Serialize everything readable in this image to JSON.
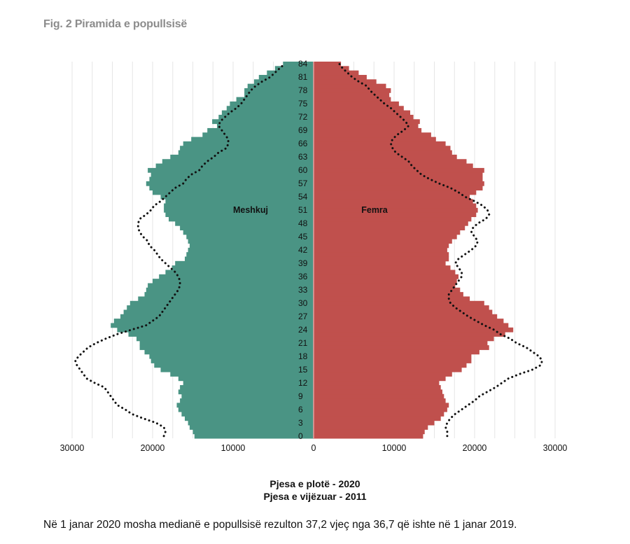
{
  "figure_title": "Fig. 2 Piramida e popullsisë",
  "legend": {
    "solid": "Pjesa e plotë - 2020",
    "dotted": "Pjesa e vijëzuar - 2011"
  },
  "footer_text": "Në 1 janar 2020 mosha medianë e popullsisë rezulton 37,2 vjeç nga 36,7 që ishte në 1 janar 2019.",
  "colors": {
    "male": "#4a9484",
    "female": "#c0504d",
    "grid": "#e6e6e6",
    "axis_line": "#e8a0a0"
  },
  "chart_data": {
    "type": "bar",
    "orientation": "horizontal-population-pyramid",
    "ages": [
      0,
      1,
      2,
      3,
      4,
      5,
      6,
      7,
      8,
      9,
      10,
      11,
      12,
      13,
      14,
      15,
      16,
      17,
      18,
      19,
      20,
      21,
      22,
      23,
      24,
      25,
      26,
      27,
      28,
      29,
      30,
      31,
      32,
      33,
      34,
      35,
      36,
      37,
      38,
      39,
      40,
      41,
      42,
      43,
      44,
      45,
      46,
      47,
      48,
      49,
      50,
      51,
      52,
      53,
      54,
      55,
      56,
      57,
      58,
      59,
      60,
      61,
      62,
      63,
      64,
      65,
      66,
      67,
      68,
      69,
      70,
      71,
      72,
      73,
      74,
      75,
      76,
      77,
      78,
      79,
      80,
      81,
      82,
      83,
      84
    ],
    "y_tick_labels": [
      "0",
      "3",
      "6",
      "9",
      "12",
      "15",
      "18",
      "21",
      "24",
      "27",
      "30",
      "33",
      "36",
      "39",
      "42",
      "45",
      "48",
      "51",
      "54",
      "57",
      "60",
      "63",
      "66",
      "69",
      "72",
      "75",
      "78",
      "81",
      "84"
    ],
    "x_tick_labels": [
      "30000",
      "20000",
      "10000",
      "0",
      "10000",
      "20000",
      "30000"
    ],
    "xlim": [
      -30000,
      30000
    ],
    "series_labels": {
      "male": "Meshkuj",
      "female": "Femra"
    },
    "series": [
      {
        "name": "Meshkuj",
        "style": "solid",
        "values": [
          14800,
          15000,
          15400,
          15600,
          16000,
          16400,
          16800,
          17000,
          16600,
          16400,
          16800,
          16600,
          16200,
          16800,
          17800,
          19000,
          19800,
          20200,
          20400,
          21000,
          21600,
          21600,
          22000,
          23000,
          24400,
          25200,
          24800,
          24000,
          23600,
          23200,
          22800,
          21800,
          21000,
          20800,
          20600,
          20000,
          19200,
          18400,
          17600,
          17200,
          16000,
          15800,
          15600,
          15400,
          15600,
          15800,
          16200,
          16600,
          17200,
          18000,
          18400,
          18600,
          18600,
          18400,
          19000,
          20000,
          20400,
          20800,
          20400,
          20200,
          20600,
          19600,
          18800,
          17800,
          16800,
          16600,
          16200,
          15200,
          13800,
          13200,
          12000,
          12600,
          11800,
          11400,
          10800,
          10400,
          9600,
          8600,
          8600,
          8200,
          7400,
          6800,
          5800,
          4800,
          3800
        ]
      },
      {
        "name": "Femra",
        "style": "solid",
        "values": [
          13600,
          13800,
          14200,
          15000,
          15800,
          16200,
          16600,
          16800,
          16400,
          16200,
          16000,
          15800,
          15600,
          16400,
          17200,
          18400,
          19000,
          19600,
          19600,
          20600,
          21800,
          21600,
          22400,
          23800,
          24800,
          24200,
          23600,
          22800,
          22200,
          21800,
          21200,
          19400,
          18600,
          18200,
          17600,
          17800,
          18000,
          17600,
          17000,
          16400,
          16800,
          16800,
          16600,
          16800,
          17200,
          17800,
          18200,
          18800,
          19200,
          19600,
          20200,
          20400,
          20200,
          19800,
          19400,
          20200,
          21000,
          21200,
          21000,
          21000,
          21200,
          19800,
          19000,
          17800,
          17200,
          17000,
          16400,
          15200,
          14600,
          13400,
          13000,
          13200,
          12400,
          12000,
          11200,
          10600,
          9600,
          9400,
          9600,
          9000,
          7800,
          6600,
          5600,
          4400,
          3400
        ]
      },
      {
        "name": "Meshkuj",
        "style": "dotted",
        "values": [
          18600,
          18400,
          18600,
          19600,
          21200,
          22600,
          23400,
          24400,
          24800,
          25200,
          25600,
          26000,
          27200,
          28200,
          28600,
          29000,
          29400,
          29600,
          29200,
          28600,
          28000,
          27000,
          25800,
          24400,
          22600,
          20800,
          20000,
          19200,
          18800,
          18400,
          18000,
          17600,
          17200,
          16800,
          16600,
          16600,
          16800,
          17200,
          17800,
          18400,
          19000,
          19400,
          19800,
          20400,
          20600,
          21200,
          21600,
          21800,
          21800,
          21600,
          20800,
          20200,
          19800,
          19000,
          18400,
          17800,
          17200,
          16200,
          15800,
          15200,
          14200,
          13800,
          13200,
          12400,
          11800,
          10800,
          10600,
          10600,
          11000,
          11400,
          11800,
          11600,
          11000,
          10400,
          9600,
          9000,
          8600,
          8200,
          7800,
          7200,
          6400,
          5400,
          4800,
          4200,
          3600
        ]
      },
      {
        "name": "Femra",
        "style": "dotted",
        "values": [
          16600,
          16600,
          16400,
          16600,
          17000,
          17600,
          18400,
          19200,
          20000,
          20600,
          21600,
          22600,
          23400,
          24200,
          25600,
          27200,
          28200,
          28400,
          28000,
          27200,
          26400,
          25200,
          24400,
          23200,
          22400,
          21200,
          20200,
          19200,
          18400,
          17600,
          17000,
          16800,
          16800,
          17200,
          17600,
          18000,
          18400,
          18400,
          18000,
          17600,
          18000,
          18800,
          19600,
          20200,
          20400,
          20000,
          19600,
          19800,
          20400,
          21400,
          21800,
          21600,
          21000,
          20000,
          18800,
          18000,
          17000,
          15600,
          14400,
          13400,
          12800,
          12200,
          11800,
          11000,
          10200,
          9800,
          9600,
          9800,
          10400,
          11200,
          11800,
          11400,
          10800,
          10200,
          9600,
          8800,
          8200,
          7600,
          7000,
          6600,
          5600,
          4800,
          4200,
          3600,
          3200
        ]
      }
    ]
  }
}
